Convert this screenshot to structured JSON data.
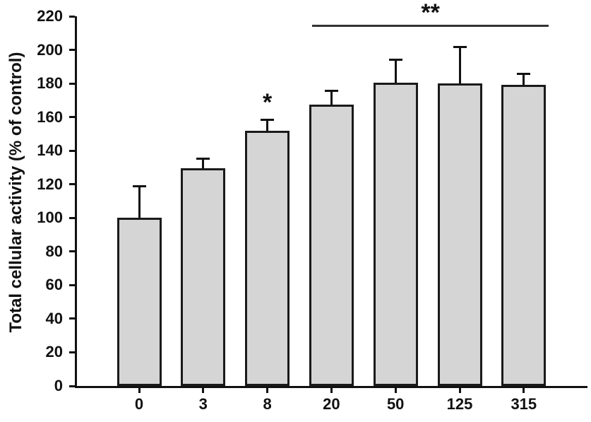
{
  "chart_data": {
    "type": "bar",
    "title": "",
    "ylabel": "Total cellular activity (% of control)",
    "xlabel": "",
    "ylim": [
      0,
      220
    ],
    "ytick_step": 20,
    "categories": [
      "0",
      "3",
      "8",
      "20",
      "50",
      "125",
      "315"
    ],
    "values": [
      100,
      129.5,
      152,
      167.5,
      180.5,
      180,
      179
    ],
    "errors": [
      19,
      6,
      6.5,
      8.5,
      14,
      22,
      7
    ],
    "grid": false,
    "legend": "none",
    "colors": {
      "bar_fill": "#d5d5d5",
      "bar_border": "#1a1a1a",
      "axis": "#111111",
      "background": "#ffffff",
      "text": "#111111",
      "bracket": "#333333"
    },
    "annotations": [
      {
        "type": "star",
        "label": "*",
        "bar_index": 2
      },
      {
        "type": "bracket",
        "label": "**",
        "from_index": 3,
        "to_index": 6
      }
    ]
  }
}
